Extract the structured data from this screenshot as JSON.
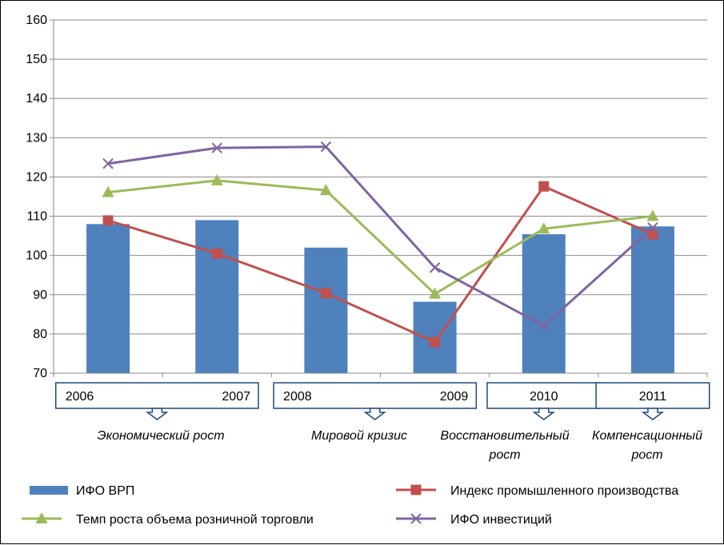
{
  "chart_data": {
    "type": "bar+line",
    "categories": [
      "2006",
      "2007",
      "2008",
      "2009",
      "2010",
      "2011"
    ],
    "ylim": [
      70,
      160
    ],
    "yticks": [
      70,
      80,
      90,
      100,
      110,
      120,
      130,
      140,
      150,
      160
    ],
    "grid": true,
    "legend_position": "bottom",
    "series": [
      {
        "name": "ИФО ВРП",
        "type": "bar",
        "color": "#4F81BD",
        "values": [
          108,
          109,
          102,
          88.2,
          105.4,
          107.4
        ]
      },
      {
        "name": "Индекс промышленного производства",
        "type": "line",
        "marker": "square",
        "color": "#C0504D",
        "values": [
          108.9,
          100.5,
          90.4,
          77.9,
          117.6,
          105.4
        ]
      },
      {
        "name": "Темп роста объема розничной торговли",
        "type": "line",
        "marker": "triangle",
        "color": "#9BBB59",
        "values": [
          116.1,
          119.1,
          116.6,
          90.2,
          106.8,
          110
        ]
      },
      {
        "name": "ИФО инвестиций",
        "type": "line",
        "marker": "x",
        "color": "#8064A2",
        "values": [
          123.4,
          127.4,
          127.7,
          96.9,
          82.1,
          107.1
        ]
      }
    ],
    "period_groups": [
      {
        "years": [
          "2006",
          "2007"
        ],
        "label_lines": [
          "Экономический рост"
        ]
      },
      {
        "years": [
          "2008",
          "2009"
        ],
        "label_lines": [
          "Мировой кризис"
        ]
      },
      {
        "years": [
          "2010"
        ],
        "label_lines": [
          "Восстановительный",
          "рост"
        ]
      },
      {
        "years": [
          "2011"
        ],
        "label_lines": [
          "Компенсационный",
          "рост"
        ]
      }
    ]
  }
}
